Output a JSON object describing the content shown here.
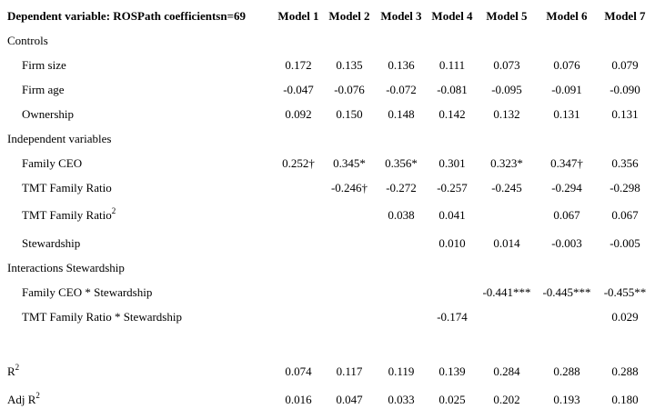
{
  "table": {
    "header": [
      "Dependent variable: ROSPath coefficientsn=69",
      "Model 1",
      "Model 2",
      "Model 3",
      "Model 4",
      "Model 5",
      "Model 6",
      "Model 7"
    ],
    "rows": [
      {
        "label": "Controls",
        "section": true
      },
      {
        "label": "Firm size",
        "cells": [
          "0.172",
          "0.135",
          "0.136",
          "0.111",
          "0.073",
          "0.076",
          "0.079"
        ]
      },
      {
        "label": "Firm age",
        "cells": [
          "-0.047",
          "-0.076",
          "-0.072",
          "-0.081",
          "-0.095",
          "-0.091",
          "-0.090"
        ]
      },
      {
        "label": "Ownership",
        "cells": [
          "0.092",
          "0.150",
          "0.148",
          "0.142",
          "0.132",
          "0.131",
          "0.131"
        ]
      },
      {
        "label": "Independent variables",
        "section": true
      },
      {
        "label": "Family CEO",
        "cells": [
          "0.252†",
          "0.345*",
          "0.356*",
          "0.301",
          "0.323*",
          "0.347†",
          "0.356"
        ]
      },
      {
        "label": "TMT Family Ratio",
        "cells": [
          null,
          "-0.246†",
          "-0.272",
          "-0.257",
          "-0.245",
          "-0.294",
          "-0.298"
        ]
      },
      {
        "label": "TMT Family Ratio",
        "sup": "2",
        "cells": [
          null,
          null,
          "0.038",
          "0.041",
          null,
          "0.067",
          "0.067"
        ]
      },
      {
        "label": "Stewardship",
        "cells": [
          null,
          null,
          null,
          "0.010",
          "0.014",
          "-0.003",
          "-0.005"
        ]
      },
      {
        "label": "Interactions Stewardship",
        "section": true
      },
      {
        "label": "Family CEO * Stewardship",
        "cells": [
          null,
          null,
          null,
          null,
          "-0.441***",
          "-0.445***",
          "-0.455**"
        ]
      },
      {
        "label": "TMT Family Ratio * Stewardship",
        "cells": [
          null,
          null,
          null,
          "-0.174",
          null,
          null,
          "0.029"
        ]
      },
      {
        "label": "R",
        "sup": "2",
        "section": true,
        "cells": [
          "0.074",
          "0.117",
          "0.119",
          "0.139",
          "0.284",
          "0.288",
          "0.288"
        ]
      },
      {
        "label": "Adj R",
        "sup": "2",
        "section": true,
        "cells": [
          "0.016",
          "0.047",
          "0.033",
          "0.025",
          "0.202",
          "0.193",
          "0.180"
        ]
      }
    ]
  }
}
